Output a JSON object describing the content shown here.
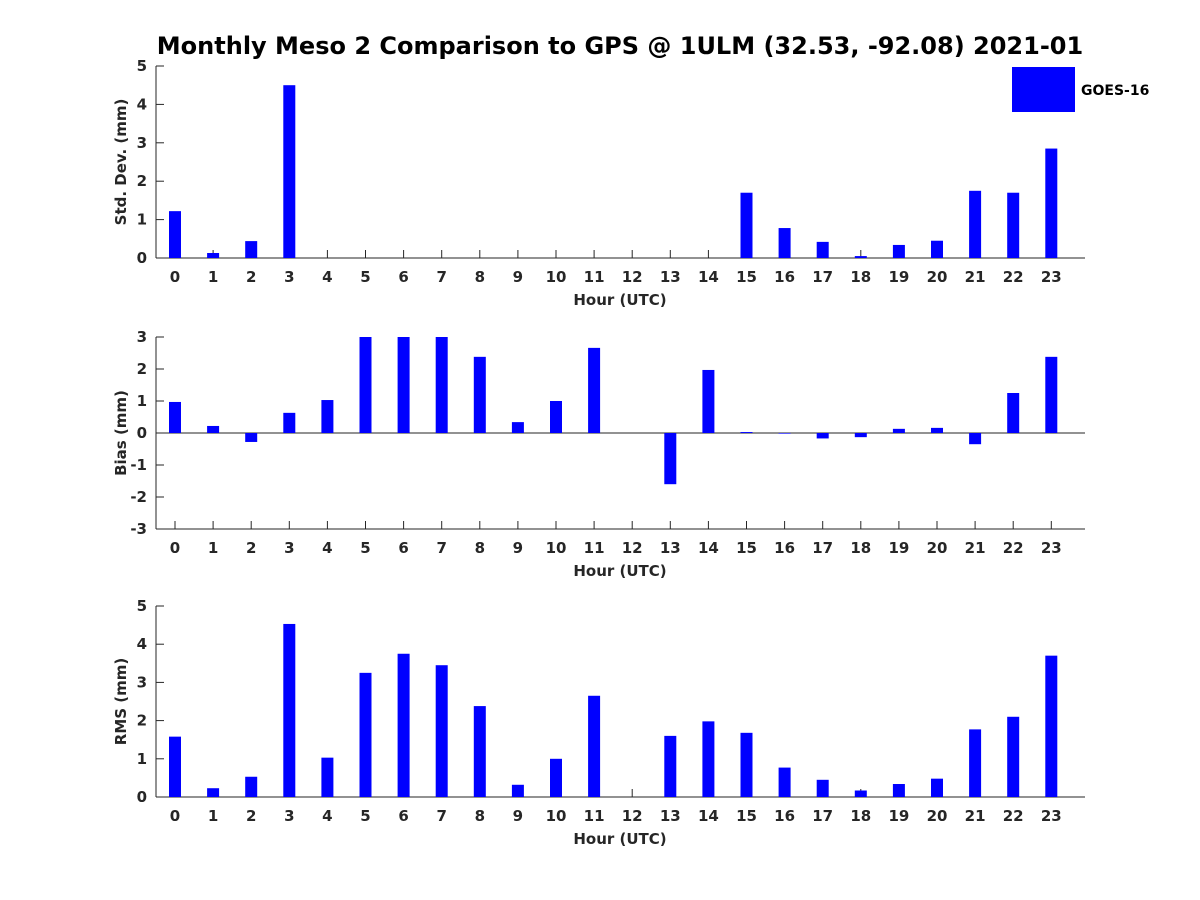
{
  "title": "Monthly Meso 2 Comparison to GPS @ 1ULM (32.53, -92.08) 2021-01",
  "legend": {
    "label": "GOES-16",
    "color": "#0000ff"
  },
  "chart_data": [
    {
      "type": "bar",
      "xlabel": "Hour (UTC)",
      "ylabel": "Std. Dev. (mm)",
      "ylim": [
        0,
        5
      ],
      "yticks": [
        "0",
        "1",
        "2",
        "3",
        "4",
        "5"
      ],
      "categories": [
        "0",
        "1",
        "2",
        "3",
        "4",
        "5",
        "6",
        "7",
        "8",
        "9",
        "10",
        "11",
        "12",
        "13",
        "14",
        "15",
        "16",
        "17",
        "18",
        "19",
        "20",
        "21",
        "22",
        "23"
      ],
      "series": [
        {
          "name": "GOES-16",
          "color": "#0000ff",
          "values": [
            1.22,
            0.13,
            0.44,
            4.5,
            0,
            0,
            0,
            0,
            0,
            0,
            0,
            0,
            0,
            0,
            0,
            1.7,
            0.78,
            0.42,
            0.05,
            0.34,
            0.45,
            1.75,
            1.7,
            2.85
          ]
        }
      ],
      "grid": false
    },
    {
      "type": "bar",
      "xlabel": "Hour (UTC)",
      "ylabel": "Bias (mm)",
      "ylim": [
        -3,
        3
      ],
      "yticks": [
        "-3",
        "-2",
        "-1",
        "0",
        "1",
        "2",
        "3"
      ],
      "categories": [
        "0",
        "1",
        "2",
        "3",
        "4",
        "5",
        "6",
        "7",
        "8",
        "9",
        "10",
        "11",
        "12",
        "13",
        "14",
        "15",
        "16",
        "17",
        "18",
        "19",
        "20",
        "21",
        "22",
        "23"
      ],
      "series": [
        {
          "name": "GOES-16",
          "color": "#0000ff",
          "values": [
            0.97,
            0.22,
            -0.28,
            0.63,
            1.03,
            3.0,
            3.0,
            3.0,
            2.38,
            0.34,
            1.0,
            2.66,
            0,
            -1.6,
            1.97,
            0.03,
            -0.02,
            -0.17,
            -0.13,
            0.13,
            0.16,
            -0.35,
            1.25,
            2.38
          ]
        }
      ],
      "grid": false
    },
    {
      "type": "bar",
      "xlabel": "Hour (UTC)",
      "ylabel": "RMS (mm)",
      "ylim": [
        0,
        5
      ],
      "yticks": [
        "0",
        "1",
        "2",
        "3",
        "4",
        "5"
      ],
      "categories": [
        "0",
        "1",
        "2",
        "3",
        "4",
        "5",
        "6",
        "7",
        "8",
        "9",
        "10",
        "11",
        "12",
        "13",
        "14",
        "15",
        "16",
        "17",
        "18",
        "19",
        "20",
        "21",
        "22",
        "23"
      ],
      "series": [
        {
          "name": "GOES-16",
          "color": "#0000ff",
          "values": [
            1.58,
            0.23,
            0.53,
            4.53,
            1.03,
            3.25,
            3.75,
            3.45,
            2.38,
            0.32,
            1.0,
            2.65,
            0,
            1.6,
            1.98,
            1.68,
            0.77,
            0.45,
            0.17,
            0.34,
            0.48,
            1.77,
            2.1,
            3.7
          ]
        }
      ],
      "grid": false
    }
  ]
}
